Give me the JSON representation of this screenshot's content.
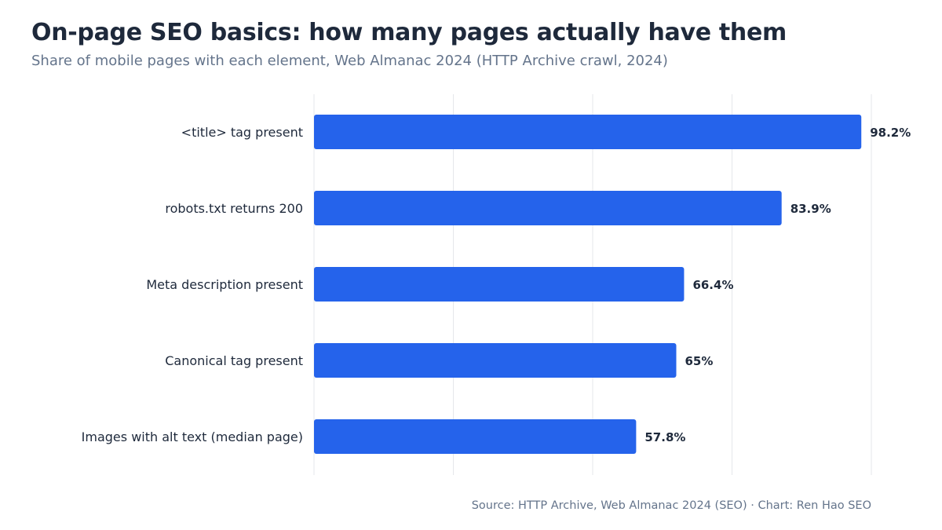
{
  "title": "On-page SEO basics: how many pages actually have them",
  "subtitle": "Share of mobile pages with each element, Web Almanac 2024 (HTTP Archive crawl, 2024)",
  "source": "Source: HTTP Archive, Web Almanac 2024 (SEO) · Chart: Ren Hao SEO",
  "colors": {
    "bar": "#2563eb",
    "grid": "#e5e7eb",
    "text": "#1e293b",
    "muted": "#64748b"
  },
  "chart_data": {
    "type": "bar",
    "orientation": "horizontal",
    "categories": [
      "<title> tag present",
      "robots.txt returns 200",
      "Meta description present",
      "Canonical tag present",
      "Images with alt text (median page)"
    ],
    "values": [
      98.2,
      83.9,
      66.4,
      65,
      57.8
    ],
    "value_labels": [
      "98.2%",
      "83.9%",
      "66.4%",
      "65%",
      "57.8%"
    ],
    "title": "On-page SEO basics: how many pages actually have them",
    "xlabel": "",
    "ylabel": "",
    "xlim": [
      0,
      100
    ],
    "grid": true,
    "legend": "none"
  }
}
